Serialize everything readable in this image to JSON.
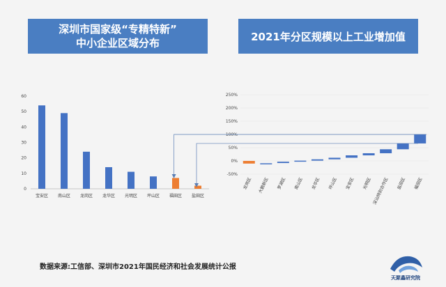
{
  "titles": {
    "left_line1": "深圳市国家级“专精特新”",
    "left_line2": "中小企业区域分布",
    "right": "2021年分区规模以上工业增加值"
  },
  "source": "数据来源:工信部、深圳市2021年国民经济和社会发展统计公报",
  "logo_text": "天聚鑫研究院",
  "colors": {
    "blue": "#4472c4",
    "orange": "#ed7d31",
    "title_bg": "#4a7ec2"
  },
  "chart_data": [
    {
      "type": "bar",
      "title": "深圳市国家级“专精特新”中小企业区域分布",
      "categories": [
        "宝安区",
        "南山区",
        "龙岗区",
        "龙华区",
        "光明区",
        "坪山区",
        "福田区",
        "盐田区"
      ],
      "values": [
        54,
        49,
        24,
        14,
        11,
        8,
        7,
        2
      ],
      "highlight": [
        false,
        false,
        false,
        false,
        false,
        false,
        true,
        true
      ],
      "ylim": [
        0,
        60
      ],
      "yticks": [
        0,
        10,
        20,
        30,
        40,
        50,
        60
      ],
      "grid": false
    },
    {
      "type": "bar",
      "subtype": "waterfall",
      "title": "2021年分区规模以上工业增加值",
      "categories": [
        "龙岗区",
        "大鹏新区",
        "罗湖区",
        "南山区",
        "龙华区",
        "坪山区",
        "宝安区",
        "光明区",
        "深汕特别合作区",
        "盐田区",
        "福田区"
      ],
      "ranges": [
        [
          -10,
          0
        ],
        [
          -10,
          -9
        ],
        [
          -8,
          -3
        ],
        [
          -3,
          1
        ],
        [
          1,
          6
        ],
        [
          6,
          12
        ],
        [
          12,
          21
        ],
        [
          21,
          29
        ],
        [
          29,
          44
        ],
        [
          44,
          66
        ],
        [
          66,
          100
        ]
      ],
      "highlight": [
        true,
        false,
        false,
        false,
        false,
        false,
        false,
        false,
        false,
        false,
        false
      ],
      "ylim": [
        -50,
        250
      ],
      "yticks": [
        "-50%",
        "0%",
        "50%",
        "100%",
        "150%",
        "200%",
        "250%"
      ],
      "grid": true
    }
  ]
}
